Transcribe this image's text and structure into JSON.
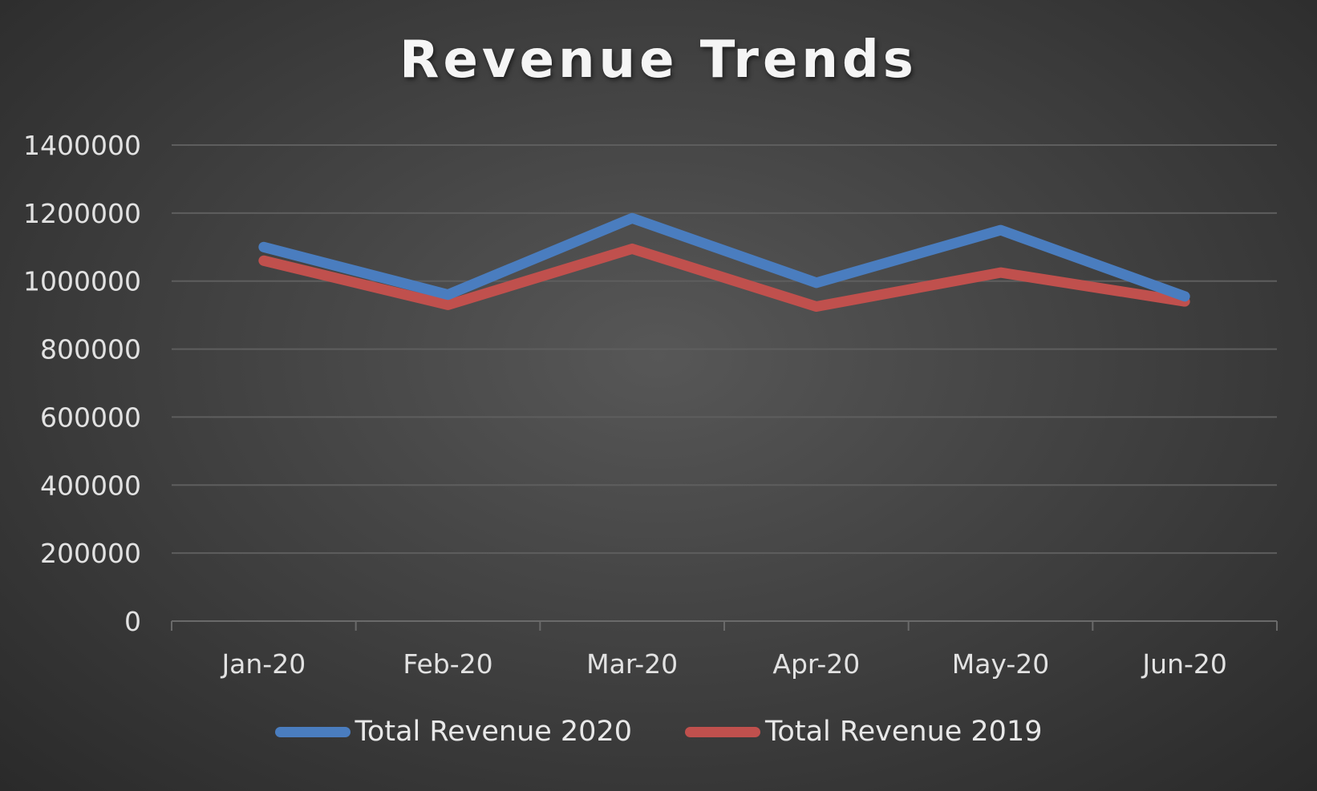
{
  "chart_data": {
    "type": "line",
    "title": "Revenue Trends",
    "xlabel": "",
    "ylabel": "",
    "categories": [
      "Jan-20",
      "Feb-20",
      "Mar-20",
      "Apr-20",
      "May-20",
      "Jun-20"
    ],
    "yticks": [
      "0",
      "200000",
      "400000",
      "600000",
      "800000",
      "1000000",
      "1200000",
      "1400000"
    ],
    "ylim": [
      0,
      1400000
    ],
    "grid": true,
    "legend_position": "bottom",
    "series": [
      {
        "name": "Total Revenue 2020",
        "color": "#4a7dbf",
        "values": [
          1100000,
          960000,
          1185000,
          995000,
          1150000,
          955000
        ]
      },
      {
        "name": "Total Revenue 2019",
        "color": "#c0504d",
        "values": [
          1060000,
          930000,
          1095000,
          925000,
          1025000,
          940000
        ]
      }
    ]
  },
  "colors": {
    "gridline": "#5e5e5e",
    "axis": "#6a6a6a"
  }
}
